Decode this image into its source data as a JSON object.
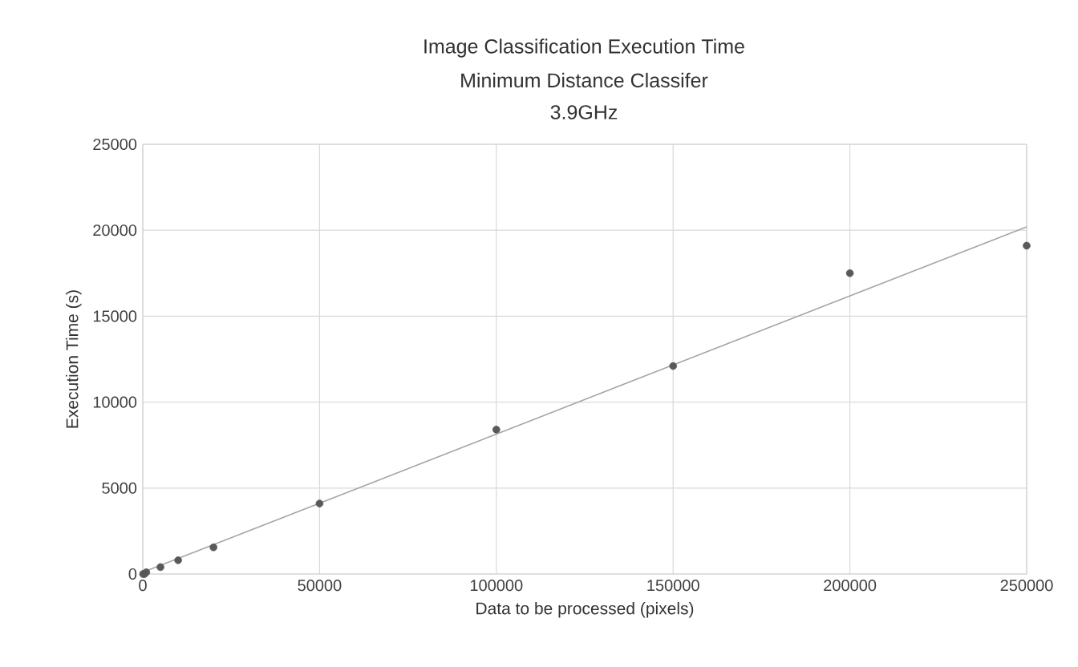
{
  "chart_data": {
    "type": "scatter",
    "title": "Image Classification Execution Time",
    "subtitle": "Minimum Distance Classifer",
    "annotations": [
      "3.9GHz"
    ],
    "xlabel": "Data to be processed (pixels)",
    "ylabel": "Execution Time (s)",
    "xlim": [
      0,
      250000
    ],
    "ylim": [
      0,
      25000
    ],
    "xticks": [
      0,
      50000,
      100000,
      150000,
      200000,
      250000
    ],
    "yticks": [
      0,
      5000,
      10000,
      15000,
      20000,
      25000
    ],
    "grid": true,
    "marker": "circle",
    "series": [
      {
        "color": "#595959",
        "x": [
          100,
          500,
          1000,
          5000,
          10000,
          20000,
          50000,
          100000,
          150000,
          200000,
          250000
        ],
        "values": [
          0,
          0,
          100,
          400,
          800,
          1550,
          4100,
          8400,
          12100,
          17500,
          19100
        ]
      },
      {
        "type": "line",
        "color": "#a6a6a6",
        "marker": "none",
        "x": [
          0,
          250000
        ],
        "values": [
          100,
          20200
        ]
      }
    ]
  }
}
